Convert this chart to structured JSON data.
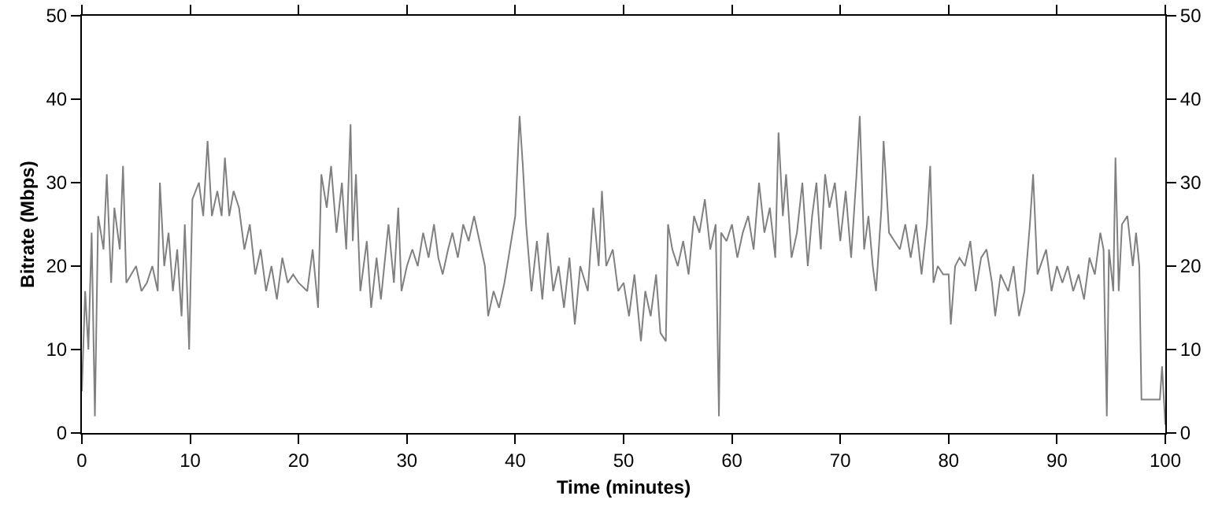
{
  "chart_data": {
    "type": "line",
    "xlabel": "Time (minutes)",
    "ylabel": "Bitrate (Mbps)",
    "xlim": [
      0,
      100
    ],
    "xticks": [
      0,
      10,
      20,
      30,
      40,
      50,
      60,
      70,
      80,
      90,
      100
    ],
    "ylim": [
      0,
      50
    ],
    "yticks": [
      0,
      10,
      20,
      30,
      40,
      50
    ],
    "y2lim": [
      0,
      50
    ],
    "y2ticks": [
      0,
      10,
      20,
      30,
      40,
      50
    ],
    "grid": false,
    "marker": "none",
    "line_style": "solid",
    "series": [
      {
        "color": "#808080",
        "x": [
          0,
          0.3,
          0.6,
          0.9,
          1.2,
          1.5,
          2,
          2.3,
          2.7,
          3,
          3.5,
          3.8,
          4.1,
          5,
          5.5,
          6,
          6.5,
          7,
          7.2,
          7.6,
          8,
          8.4,
          8.8,
          9.2,
          9.5,
          9.9,
          10.2,
          10.8,
          11.2,
          11.6,
          12,
          12.5,
          12.9,
          13.2,
          13.6,
          14,
          14.5,
          15,
          15.5,
          16,
          16.5,
          17,
          17.5,
          18,
          18.5,
          19,
          19.5,
          20,
          20.8,
          21.3,
          21.8,
          22.1,
          22.6,
          23,
          23.5,
          24,
          24.4,
          24.8,
          25,
          25.3,
          25.7,
          26.3,
          26.7,
          27.2,
          27.6,
          28.3,
          28.8,
          29.2,
          29.5,
          30,
          30.5,
          31,
          31.5,
          32,
          32.5,
          32.9,
          33.3,
          33.8,
          34.2,
          34.7,
          35.2,
          35.7,
          36.2,
          36.7,
          37.2,
          37.5,
          38,
          38.5,
          39,
          39.5,
          40,
          40.4,
          40.7,
          41,
          41.5,
          42,
          42.5,
          43,
          43.5,
          44,
          44.5,
          45,
          45.5,
          46,
          46.7,
          47.2,
          47.7,
          48,
          48.4,
          49,
          49.5,
          50,
          50.5,
          51,
          51.6,
          52,
          52.5,
          53,
          53.4,
          53.9,
          54.1,
          54.5,
          55,
          55.5,
          56,
          56.5,
          57,
          57.5,
          58,
          58.5,
          58.8,
          59,
          59.5,
          60,
          60.5,
          61,
          61.5,
          62,
          62.5,
          63,
          63.5,
          64,
          64.3,
          64.7,
          65,
          65.5,
          66,
          66.5,
          67,
          67.4,
          67.8,
          68.2,
          68.6,
          69,
          69.5,
          70,
          70.5,
          71,
          71.5,
          71.8,
          72.2,
          72.6,
          73,
          73.3,
          73.8,
          74,
          74.5,
          75,
          75.5,
          76,
          76.5,
          77,
          77.5,
          78,
          78.3,
          78.6,
          79,
          79.5,
          80,
          80.2,
          80.6,
          81,
          81.5,
          82,
          82.5,
          83,
          83.5,
          84,
          84.3,
          84.8,
          85.5,
          86,
          86.5,
          87,
          87.5,
          87.8,
          88.2,
          89,
          89.5,
          90,
          90.5,
          91,
          91.5,
          92,
          92.5,
          93,
          93.5,
          94,
          94.3,
          94.6,
          94.8,
          95.2,
          95.4,
          95.7,
          96,
          96.5,
          97,
          97.3,
          97.6,
          97.8,
          98.5,
          99.5,
          99.7,
          100
        ],
        "values": [
          5,
          17,
          10,
          24,
          2,
          26,
          22,
          31,
          18,
          27,
          22,
          32,
          18,
          20,
          17,
          18,
          20,
          17,
          30,
          20,
          24,
          17,
          22,
          14,
          25,
          10,
          28,
          30,
          26,
          35,
          26,
          29,
          26,
          33,
          26,
          29,
          27,
          22,
          25,
          19,
          22,
          17,
          20,
          16,
          21,
          18,
          19,
          18,
          17,
          22,
          15,
          31,
          27,
          32,
          24,
          30,
          22,
          37,
          23,
          31,
          17,
          23,
          15,
          21,
          16,
          25,
          18,
          27,
          17,
          20,
          22,
          20,
          24,
          21,
          25,
          21,
          19,
          22,
          24,
          21,
          25,
          23,
          26,
          23,
          20,
          14,
          17,
          15,
          18,
          22,
          26,
          38,
          32,
          25,
          17,
          23,
          16,
          24,
          17,
          20,
          15,
          21,
          13,
          20,
          17,
          27,
          20,
          29,
          20,
          22,
          17,
          18,
          14,
          19,
          11,
          17,
          14,
          19,
          12,
          11,
          25,
          22,
          20,
          23,
          19,
          26,
          24,
          28,
          22,
          25,
          2,
          24,
          23,
          25,
          21,
          24,
          26,
          22,
          30,
          24,
          27,
          21,
          36,
          26,
          31,
          21,
          24,
          30,
          20,
          26,
          30,
          22,
          31,
          27,
          30,
          23,
          29,
          21,
          31,
          38,
          22,
          26,
          20,
          17,
          27,
          35,
          24,
          23,
          22,
          25,
          21,
          25,
          19,
          25,
          32,
          18,
          20,
          19,
          19,
          13,
          20,
          21,
          20,
          23,
          17,
          21,
          22,
          18,
          14,
          19,
          17,
          20,
          14,
          17,
          25,
          31,
          19,
          22,
          17,
          20,
          18,
          20,
          17,
          19,
          16,
          21,
          19,
          24,
          22,
          2,
          22,
          17,
          33,
          17,
          25,
          26,
          20,
          24,
          20,
          4,
          4,
          4,
          8,
          1
        ]
      }
    ]
  }
}
